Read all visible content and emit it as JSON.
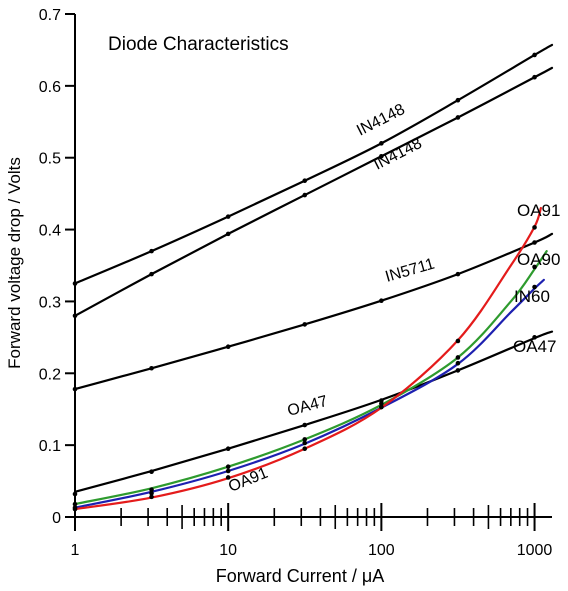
{
  "chart_data": {
    "type": "line",
    "title": "Diode Characteristics",
    "xlabel": "Forward Current / μA",
    "ylabel": "Forward voltage drop / Volts",
    "x_scale": "log",
    "xlim": [
      1,
      1300
    ],
    "ylim": [
      0,
      0.7
    ],
    "x_ticks": [
      1,
      10,
      100,
      1000
    ],
    "x_tick_labels": [
      "1",
      "10",
      "100",
      "1000"
    ],
    "y_ticks": [
      0,
      0.1,
      0.2,
      0.3,
      0.4,
      0.5,
      0.6,
      0.7
    ],
    "y_tick_labels": [
      "0",
      "0.1",
      "0.2",
      "0.3",
      "0.4",
      "0.5",
      "0.6",
      "0.7"
    ],
    "grid": false,
    "series": [
      {
        "name": "IN4148",
        "color": "#000000",
        "points": [
          [
            1,
            0.325
          ],
          [
            3.16,
            0.37
          ],
          [
            10,
            0.418
          ],
          [
            31.6,
            0.468
          ],
          [
            100,
            0.52
          ],
          [
            316,
            0.58
          ],
          [
            1000,
            0.643
          ]
        ],
        "curve": [
          [
            1,
            0.325
          ],
          [
            3.16,
            0.37
          ],
          [
            10,
            0.418
          ],
          [
            31.6,
            0.468
          ],
          [
            100,
            0.52
          ],
          [
            316,
            0.58
          ],
          [
            1000,
            0.643
          ],
          [
            1300,
            0.657
          ]
        ],
        "label_text": "IN4148"
      },
      {
        "name": "IN4148",
        "color": "#000000",
        "points": [
          [
            1,
            0.28
          ],
          [
            3.16,
            0.338
          ],
          [
            10,
            0.394
          ],
          [
            31.6,
            0.448
          ],
          [
            100,
            0.502
          ],
          [
            316,
            0.556
          ],
          [
            1000,
            0.612
          ]
        ],
        "curve": [
          [
            1,
            0.28
          ],
          [
            3.16,
            0.338
          ],
          [
            10,
            0.394
          ],
          [
            31.6,
            0.448
          ],
          [
            100,
            0.502
          ],
          [
            316,
            0.556
          ],
          [
            1000,
            0.612
          ],
          [
            1300,
            0.625
          ]
        ],
        "label_text": "IN4148"
      },
      {
        "name": "IN5711",
        "color": "#000000",
        "points": [
          [
            1,
            0.178
          ],
          [
            3.16,
            0.207
          ],
          [
            10,
            0.237
          ],
          [
            31.6,
            0.268
          ],
          [
            100,
            0.301
          ],
          [
            316,
            0.338
          ],
          [
            1000,
            0.382
          ]
        ],
        "curve": [
          [
            1,
            0.178
          ],
          [
            3.16,
            0.207
          ],
          [
            10,
            0.237
          ],
          [
            31.6,
            0.268
          ],
          [
            100,
            0.301
          ],
          [
            316,
            0.338
          ],
          [
            1000,
            0.382
          ],
          [
            1300,
            0.394
          ]
        ],
        "label_text": "IN5711"
      },
      {
        "name": "OA47",
        "color": "#000000",
        "points": [
          [
            1,
            0.032
          ],
          [
            3.16,
            0.063
          ],
          [
            10,
            0.095
          ],
          [
            31.6,
            0.128
          ],
          [
            100,
            0.162
          ],
          [
            316,
            0.204
          ],
          [
            1000,
            0.25
          ]
        ],
        "curve": [
          [
            1,
            0.035
          ],
          [
            3.16,
            0.064
          ],
          [
            10,
            0.095
          ],
          [
            31.6,
            0.128
          ],
          [
            100,
            0.163
          ],
          [
            316,
            0.204
          ],
          [
            1000,
            0.249
          ],
          [
            1300,
            0.258
          ]
        ],
        "label_text": "OA47"
      },
      {
        "name": "OA90",
        "color": "#2e9b2e",
        "points": [
          [
            1,
            0.018
          ],
          [
            3.16,
            0.038
          ],
          [
            10,
            0.07
          ],
          [
            31.6,
            0.108
          ],
          [
            100,
            0.158
          ],
          [
            316,
            0.222
          ],
          [
            1000,
            0.348
          ]
        ],
        "curve": [
          [
            1,
            0.018
          ],
          [
            3.16,
            0.04
          ],
          [
            10,
            0.07
          ],
          [
            31.6,
            0.108
          ],
          [
            100,
            0.156
          ],
          [
            316,
            0.222
          ],
          [
            700,
            0.3
          ],
          [
            1000,
            0.345
          ],
          [
            1200,
            0.37
          ]
        ],
        "label_text": "OA90"
      },
      {
        "name": "IN60",
        "color": "#1d20b0",
        "points": [
          [
            1,
            0.013
          ],
          [
            3.16,
            0.033
          ],
          [
            10,
            0.064
          ],
          [
            31.6,
            0.103
          ],
          [
            100,
            0.153
          ],
          [
            316,
            0.214
          ],
          [
            1000,
            0.32
          ]
        ],
        "curve": [
          [
            1,
            0.013
          ],
          [
            3.16,
            0.035
          ],
          [
            10,
            0.064
          ],
          [
            31.6,
            0.102
          ],
          [
            100,
            0.152
          ],
          [
            316,
            0.213
          ],
          [
            700,
            0.285
          ],
          [
            1000,
            0.318
          ],
          [
            1150,
            0.33
          ]
        ],
        "label_text": "IN60"
      },
      {
        "name": "OA91",
        "color": "#e41b1b",
        "points": [
          [
            1,
            0.011
          ],
          [
            3.16,
            0.028
          ],
          [
            10,
            0.055
          ],
          [
            31.6,
            0.095
          ],
          [
            100,
            0.153
          ],
          [
            316,
            0.245
          ],
          [
            1000,
            0.403
          ]
        ],
        "curve": [
          [
            1,
            0.011
          ],
          [
            3.16,
            0.027
          ],
          [
            10,
            0.054
          ],
          [
            31.6,
            0.095
          ],
          [
            100,
            0.152
          ],
          [
            316,
            0.246
          ],
          [
            700,
            0.35
          ],
          [
            1000,
            0.404
          ],
          [
            1100,
            0.43
          ]
        ],
        "label_text": "OA91"
      }
    ],
    "annotations": [
      {
        "text": "Diode Characteristics"
      },
      {
        "text": "IN4148"
      },
      {
        "text": "IN4148"
      },
      {
        "text": "IN5711"
      },
      {
        "text": "OA47"
      },
      {
        "text": "OA91"
      },
      {
        "text": "OA91"
      },
      {
        "text": "OA90"
      },
      {
        "text": "IN60"
      },
      {
        "text": "OA47"
      }
    ]
  }
}
